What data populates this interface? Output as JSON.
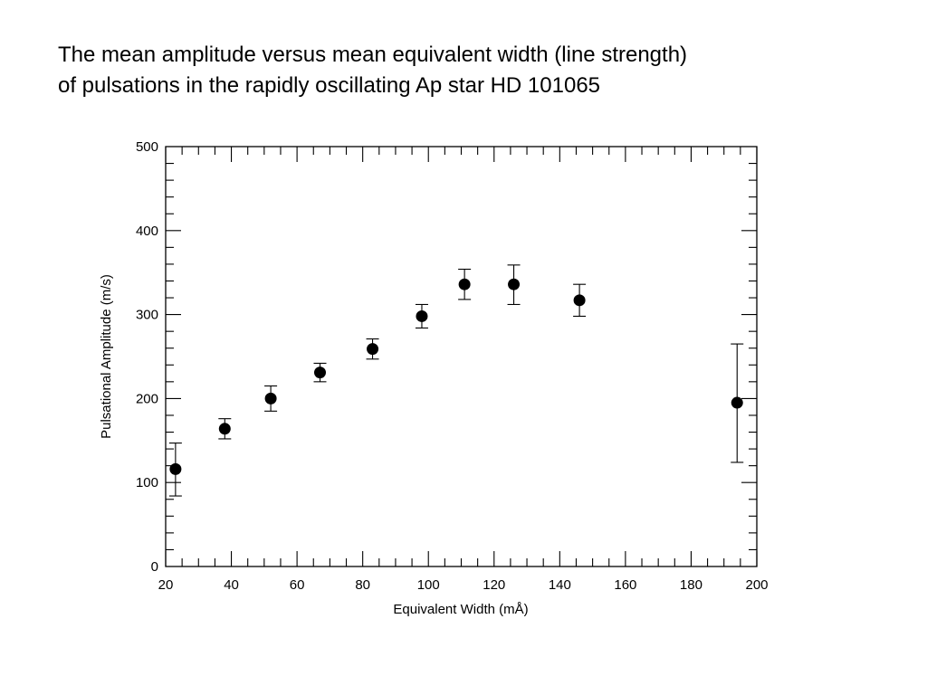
{
  "title": {
    "line1": "The mean amplitude versus mean equivalent width (line strength)",
    "line2": "of pulsations in the rapidly oscillating Ap star HD 101065"
  },
  "chart_data": {
    "type": "scatter",
    "title": "The mean amplitude versus mean equivalent width (line strength) of pulsations in the rapidly oscillating Ap star HD 101065",
    "xlabel": "Equivalent Width (mÅ)",
    "ylabel": "Pulsational Amplitude (m/s)",
    "xlim": [
      20,
      200
    ],
    "ylim": [
      0,
      500
    ],
    "xticks": [
      20,
      40,
      60,
      80,
      100,
      120,
      140,
      160,
      180,
      200
    ],
    "yticks": [
      0,
      100,
      200,
      300,
      400,
      500
    ],
    "grid": false,
    "series": [
      {
        "points": [
          {
            "x": 23,
            "y": 116,
            "err_low": 84,
            "err_high": 147
          },
          {
            "x": 38,
            "y": 164,
            "err_low": 152,
            "err_high": 176
          },
          {
            "x": 52,
            "y": 200,
            "err_low": 185,
            "err_high": 215
          },
          {
            "x": 67,
            "y": 231,
            "err_low": 220,
            "err_high": 242
          },
          {
            "x": 83,
            "y": 259,
            "err_low": 247,
            "err_high": 271
          },
          {
            "x": 98,
            "y": 298,
            "err_low": 284,
            "err_high": 312
          },
          {
            "x": 111,
            "y": 336,
            "err_low": 318,
            "err_high": 354
          },
          {
            "x": 126,
            "y": 336,
            "err_low": 312,
            "err_high": 359
          },
          {
            "x": 146,
            "y": 317,
            "err_low": 298,
            "err_high": 336
          },
          {
            "x": 194,
            "y": 195,
            "err_low": 124,
            "err_high": 265
          }
        ]
      }
    ]
  }
}
